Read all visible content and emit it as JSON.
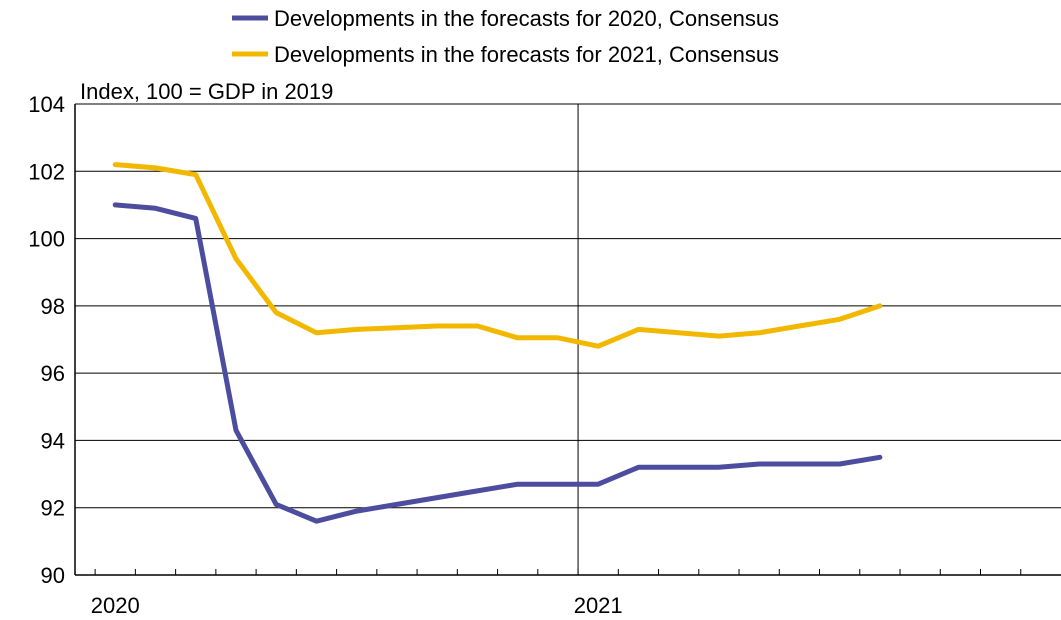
{
  "chart_data": {
    "type": "line",
    "unit_label": "Index, 100 = GDP in 2019",
    "ylim": [
      90,
      104
    ],
    "yticks": [
      90,
      92,
      94,
      96,
      98,
      100,
      102,
      104
    ],
    "xlim": [
      "2019-12",
      "2021-12"
    ],
    "xtick_labels": [
      {
        "label": "2020",
        "x": "2020-01"
      },
      {
        "label": "2021",
        "x": "2021-01"
      }
    ],
    "grid": true,
    "legend_position": "top",
    "series": [
      {
        "name": "Developments in the forecasts for 2020, Consensus",
        "color": "#4d4d9f",
        "x": [
          "2020-01",
          "2020-02",
          "2020-03",
          "2020-04",
          "2020-05",
          "2020-06",
          "2020-07",
          "2020-08",
          "2020-09",
          "2020-10",
          "2020-11",
          "2020-12",
          "2021-01",
          "2021-02",
          "2021-03",
          "2021-04",
          "2021-05",
          "2021-06",
          "2021-07",
          "2021-08"
        ],
        "values": [
          101.0,
          100.9,
          100.6,
          94.3,
          92.1,
          91.6,
          91.9,
          92.1,
          92.3,
          92.5,
          92.7,
          92.7,
          92.7,
          93.2,
          93.2,
          93.2,
          93.3,
          93.3,
          93.3,
          93.5
        ]
      },
      {
        "name": "Developments in the forecasts for 2021, Consensus",
        "color": "#f2b800",
        "x": [
          "2020-01",
          "2020-02",
          "2020-03",
          "2020-04",
          "2020-05",
          "2020-06",
          "2020-07",
          "2020-08",
          "2020-09",
          "2020-10",
          "2020-11",
          "2020-12",
          "2021-01",
          "2021-02",
          "2021-03",
          "2021-04",
          "2021-05",
          "2021-06",
          "2021-07",
          "2021-08"
        ],
        "values": [
          102.2,
          102.1,
          101.9,
          99.4,
          97.8,
          97.2,
          97.3,
          97.35,
          97.4,
          97.4,
          97.05,
          97.05,
          96.8,
          97.3,
          97.2,
          97.1,
          97.2,
          97.4,
          97.6,
          98.0
        ]
      }
    ]
  }
}
